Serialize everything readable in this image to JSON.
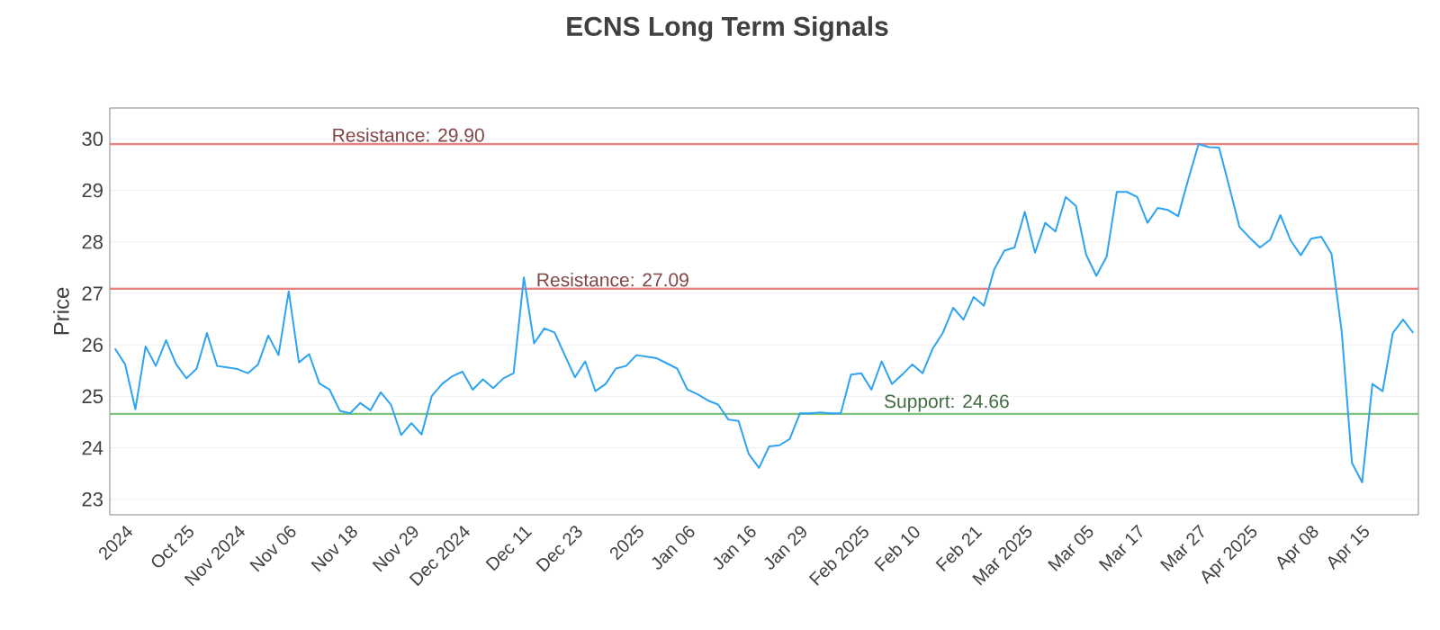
{
  "chart_data": {
    "type": "line",
    "title": "ECNS Long Term Signals",
    "ylabel": "Price",
    "categories": [
      null,
      "2024",
      null,
      null,
      null,
      null,
      null,
      "Oct 25",
      null,
      null,
      null,
      null,
      "Nov 2024",
      null,
      null,
      null,
      null,
      "Nov 06",
      null,
      null,
      null,
      null,
      null,
      "Nov 18",
      null,
      null,
      null,
      null,
      null,
      "Nov 29",
      null,
      null,
      null,
      null,
      "Dec 2024",
      null,
      null,
      null,
      null,
      null,
      "Dec 11",
      null,
      null,
      null,
      null,
      "Dec 23",
      null,
      null,
      null,
      null,
      null,
      "2025",
      null,
      null,
      null,
      null,
      "Jan 06",
      null,
      null,
      null,
      null,
      null,
      "Jan 16",
      null,
      null,
      null,
      null,
      "Jan 29",
      null,
      null,
      null,
      null,
      null,
      "Feb 2025",
      null,
      null,
      null,
      null,
      "Feb 10",
      null,
      null,
      null,
      null,
      null,
      "Feb 21",
      null,
      null,
      null,
      null,
      "Mar 2025",
      null,
      null,
      null,
      null,
      null,
      "Mar 05",
      null,
      null,
      null,
      null,
      "Mar 17",
      null,
      null,
      null,
      null,
      null,
      "Mar 27",
      null,
      null,
      null,
      null,
      "Apr 2025",
      null,
      null,
      null,
      null,
      null,
      "Apr 08",
      null,
      null,
      null,
      null,
      "Apr 15",
      null,
      null,
      null,
      null,
      null
    ],
    "series": [
      {
        "color": "#2ea3f2",
        "values": [
          25.93,
          25.62,
          24.75,
          25.97,
          25.59,
          26.09,
          25.62,
          25.35,
          25.54,
          26.23,
          25.59,
          25.56,
          25.53,
          25.45,
          25.62,
          26.18,
          25.8,
          27.04,
          25.66,
          25.82,
          25.25,
          25.13,
          24.72,
          24.67,
          24.87,
          24.73,
          25.08,
          24.84,
          24.25,
          24.48,
          24.26,
          25.01,
          25.24,
          25.39,
          25.48,
          25.13,
          25.33,
          25.16,
          25.35,
          25.45,
          27.31,
          26.03,
          26.32,
          26.24,
          25.8,
          25.37,
          25.68,
          25.1,
          25.24,
          25.54,
          25.59,
          25.8,
          25.77,
          25.74,
          25.64,
          25.54,
          25.13,
          25.04,
          24.92,
          24.84,
          24.55,
          24.52,
          23.88,
          23.61,
          24.03,
          24.05,
          24.17,
          24.67,
          24.67,
          24.69,
          24.67,
          24.67,
          25.42,
          25.45,
          25.13,
          25.68,
          25.24,
          25.42,
          25.62,
          25.45,
          25.93,
          26.24,
          26.72,
          26.49,
          26.93,
          26.76,
          27.46,
          27.83,
          27.89,
          28.58,
          27.79,
          28.37,
          28.2,
          28.87,
          28.7,
          27.75,
          27.34,
          27.71,
          28.97,
          28.97,
          28.87,
          28.37,
          28.66,
          28.62,
          28.5,
          29.22,
          29.9,
          29.84,
          29.83,
          29.07,
          28.29,
          28.08,
          27.89,
          28.04,
          28.52,
          28.03,
          27.74,
          28.06,
          28.1,
          27.77,
          26.26,
          23.71,
          23.33,
          25.24,
          25.1,
          26.23,
          26.49,
          26.23
        ]
      }
    ],
    "ylim": [
      22.7,
      30.6
    ],
    "yticks": [
      23,
      24,
      25,
      26,
      27,
      28,
      29,
      30
    ],
    "grid": "y",
    "marker": "none",
    "line_style": "solid",
    "ref_lines": [
      {
        "axis": "y",
        "value": 29.9,
        "label": "Resistance: 29.90",
        "color": "#e88080"
      },
      {
        "axis": "y",
        "value": 27.09,
        "label": "Resistance: 27.09",
        "color": "#e88080"
      },
      {
        "axis": "y",
        "value": 24.66,
        "label": "Support: 24.66",
        "color": "#7cc47c"
      }
    ]
  }
}
